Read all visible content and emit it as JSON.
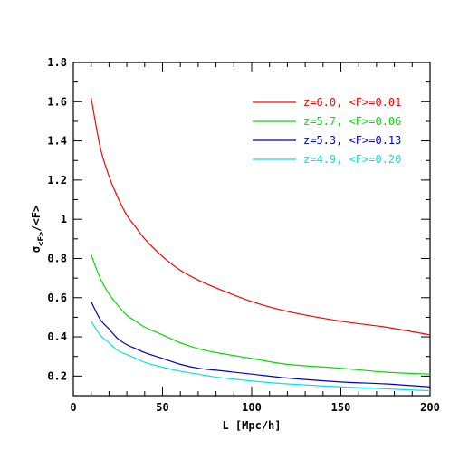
{
  "chart_data": {
    "type": "line",
    "title": "",
    "xlabel": "L [Mpc/h]",
    "ylabel_main": "σ",
    "ylabel_sub": "<F>",
    "ylabel_tail": "/<F>",
    "xlim": [
      0,
      200
    ],
    "ylim": [
      0.1,
      1.8
    ],
    "x_ticks": [
      0,
      50,
      100,
      150,
      200
    ],
    "x_tick_labels": [
      "0",
      "50",
      "100",
      "150",
      "200"
    ],
    "y_ticks": [
      0.2,
      0.4,
      0.6,
      0.8,
      1.0,
      1.2,
      1.4,
      1.6,
      1.8
    ],
    "y_tick_labels": [
      "0.2",
      "0.4",
      "0.6",
      "0.8",
      "1",
      "1.2",
      "1.4",
      "1.6",
      "1.8"
    ],
    "grid": false,
    "legend_position": "top-right",
    "x": [
      10,
      15,
      20,
      25,
      30,
      35,
      40,
      50,
      60,
      70,
      80,
      100,
      120,
      150,
      175,
      200
    ],
    "series": [
      {
        "name": "z=6.0, <F>=0.01",
        "color": "#ff0000",
        "values": [
          1.62,
          1.37,
          1.22,
          1.11,
          1.02,
          0.96,
          0.9,
          0.81,
          0.74,
          0.69,
          0.65,
          0.58,
          0.53,
          0.48,
          0.45,
          0.41
        ]
      },
      {
        "name": "z=5.7, <F>=0.06",
        "color": "#00dd00",
        "values": [
          0.82,
          0.7,
          0.62,
          0.56,
          0.51,
          0.48,
          0.45,
          0.41,
          0.37,
          0.34,
          0.32,
          0.29,
          0.26,
          0.24,
          0.22,
          0.21
        ]
      },
      {
        "name": "z=5.3, <F>=0.13",
        "color": "#0000cc",
        "values": [
          0.58,
          0.49,
          0.44,
          0.39,
          0.36,
          0.34,
          0.32,
          0.29,
          0.26,
          0.24,
          0.23,
          0.21,
          0.19,
          0.17,
          0.16,
          0.145
        ]
      },
      {
        "name": "z=4.9, <F>=0.20",
        "color": "#00e5e5",
        "values": [
          0.48,
          0.41,
          0.37,
          0.33,
          0.31,
          0.29,
          0.27,
          0.245,
          0.225,
          0.21,
          0.195,
          0.175,
          0.16,
          0.145,
          0.135,
          0.125
        ]
      }
    ]
  }
}
